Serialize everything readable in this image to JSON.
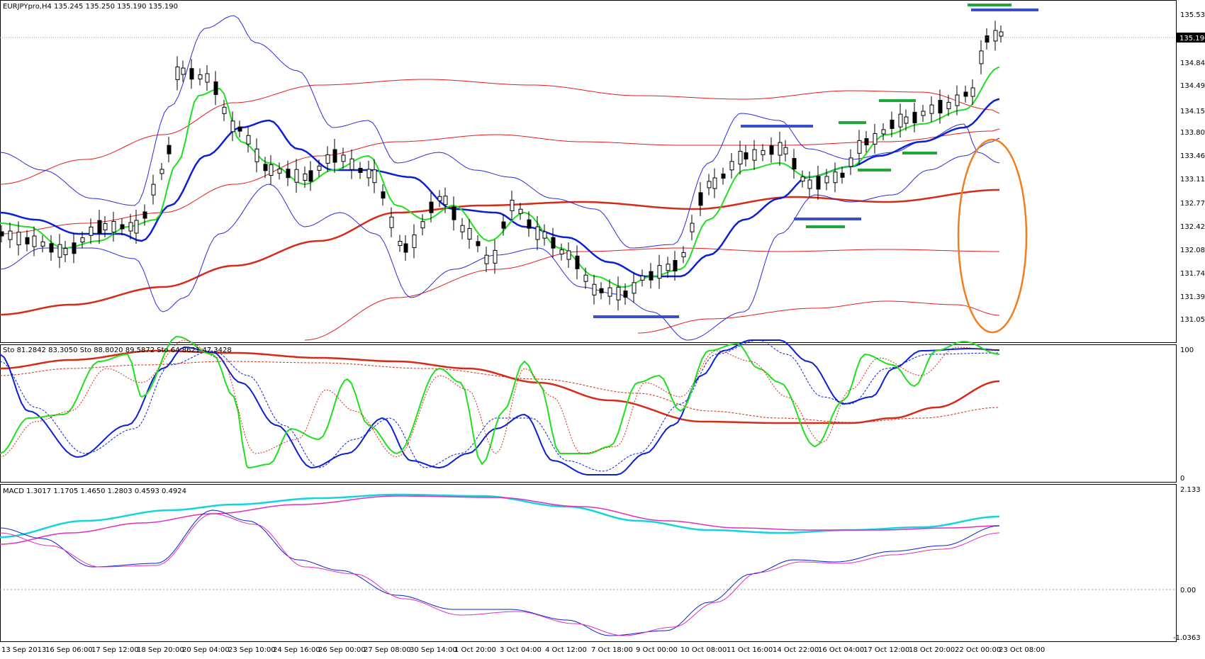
{
  "price_panel": {
    "header": "EURJPYpro,H4  135.245 135.250 135.190 135.190",
    "price_ticks": [
      "135.530",
      "134.840",
      "134.490",
      "134.150",
      "133.800",
      "133.460",
      "133.110",
      "132.770",
      "132.420",
      "132.080",
      "131.740",
      "131.390",
      "131.050"
    ],
    "current_price_tag": "135.190"
  },
  "stochastic_panel": {
    "header": "Sto 81.2842 83.3050  Sto 88.8020 89.5872  Sto 64.8621 47.3428",
    "ticks": [
      "100",
      "0"
    ]
  },
  "macd_panel": {
    "header": "MACD 1.3017 1.1705 1.4650 1.2803 0.4593 0.4924",
    "ticks": [
      "2.133",
      "0.00",
      "-1.0363"
    ]
  },
  "time_axis": {
    "labels": [
      "13 Sep 2013",
      "16 Sep 06:00",
      "17 Sep 12:00",
      "18 Sep 20:00",
      "20 Sep 04:00",
      "23 Sep 10:00",
      "24 Sep 16:00",
      "26 Sep 00:00",
      "27 Sep 08:00",
      "30 Sep 14:00",
      "1 Oct 20:00",
      "3 Oct 04:00",
      "4 Oct 12:00",
      "7 Oct 18:00",
      "9 Oct 00:00",
      "10 Oct 08:00",
      "11 Oct 16:00",
      "14 Oct 22:00",
      "16 Oct 04:00",
      "17 Oct 12:00",
      "18 Oct 20:00",
      "22 Oct 00:00",
      "23 Oct 08:00"
    ]
  },
  "colors": {
    "bollinger_outer": "#2b2bd9",
    "moving_avg_blue": "#0a1fd6",
    "moving_avg_green": "#1fe01f",
    "envelope_red": "#e51c1c",
    "ma_red_thick": "#d62b16",
    "support_resistance_blue": "#3a4cd0",
    "support_resistance_green": "#1ea83a",
    "highlight_ellipse": "#f07d1e",
    "macd_cyan": "#12d4e0",
    "macd_magenta": "#e02ebd"
  }
}
